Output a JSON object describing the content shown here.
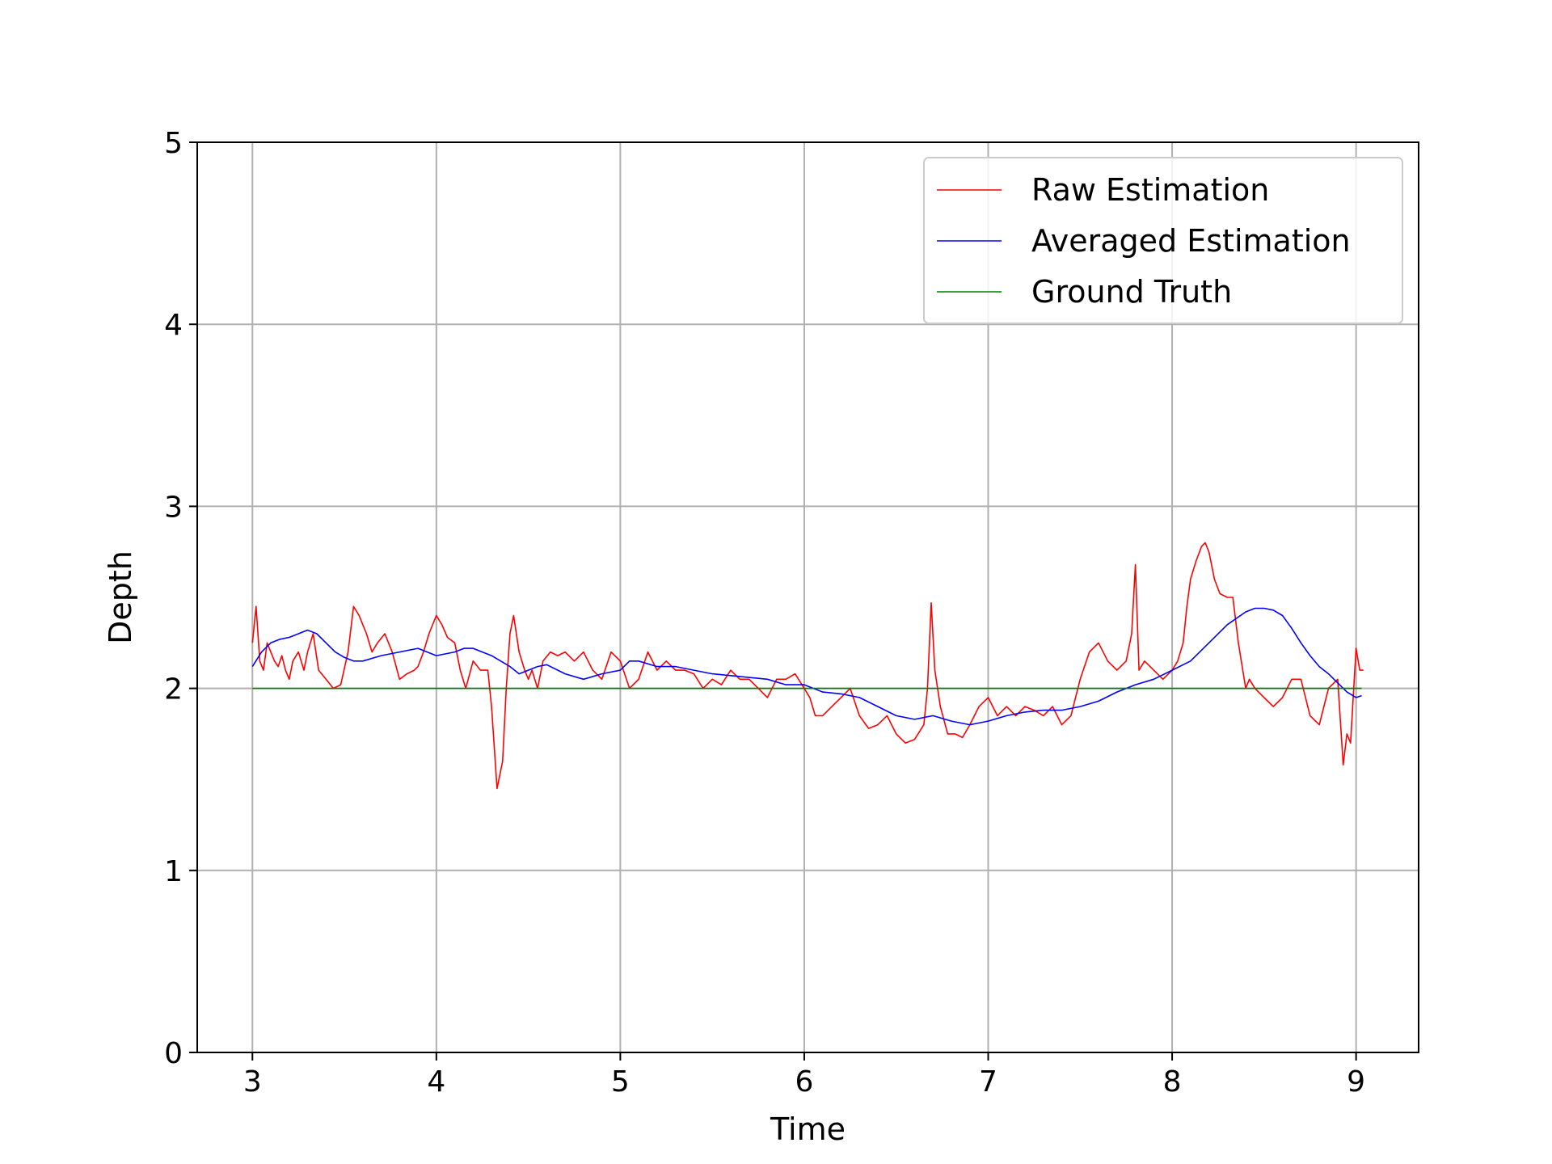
{
  "chart_data": {
    "type": "line",
    "title": "",
    "xlabel": "Time",
    "ylabel": "Depth",
    "xlim": [
      2.7,
      9.34
    ],
    "ylim": [
      0,
      5
    ],
    "xticks": [
      "3",
      "4",
      "5",
      "6",
      "7",
      "8",
      "9"
    ],
    "yticks": [
      "0",
      "1",
      "2",
      "3",
      "4",
      "5"
    ],
    "grid": true,
    "legend_position": "top-right",
    "series": [
      {
        "name": "Raw Estimation",
        "color": "#ff0000",
        "x": [
          3.0,
          3.02,
          3.04,
          3.06,
          3.08,
          3.1,
          3.12,
          3.14,
          3.16,
          3.18,
          3.2,
          3.22,
          3.25,
          3.28,
          3.3,
          3.33,
          3.36,
          3.4,
          3.44,
          3.48,
          3.52,
          3.55,
          3.58,
          3.6,
          3.62,
          3.65,
          3.68,
          3.72,
          3.76,
          3.8,
          3.84,
          3.88,
          3.9,
          3.93,
          3.96,
          4.0,
          4.03,
          4.06,
          4.1,
          4.13,
          4.16,
          4.2,
          4.24,
          4.28,
          4.3,
          4.33,
          4.36,
          4.38,
          4.4,
          4.42,
          4.45,
          4.48,
          4.5,
          4.52,
          4.55,
          4.58,
          4.62,
          4.66,
          4.7,
          4.75,
          4.8,
          4.85,
          4.9,
          4.95,
          5.0,
          5.05,
          5.1,
          5.15,
          5.2,
          5.25,
          5.3,
          5.35,
          5.4,
          5.45,
          5.5,
          5.55,
          5.6,
          5.65,
          5.7,
          5.75,
          5.8,
          5.85,
          5.9,
          5.95,
          6.0,
          6.03,
          6.06,
          6.1,
          6.15,
          6.2,
          6.25,
          6.3,
          6.35,
          6.4,
          6.45,
          6.5,
          6.55,
          6.6,
          6.65,
          6.67,
          6.69,
          6.71,
          6.74,
          6.78,
          6.82,
          6.86,
          6.9,
          6.95,
          7.0,
          7.05,
          7.1,
          7.15,
          7.2,
          7.25,
          7.3,
          7.35,
          7.4,
          7.45,
          7.5,
          7.55,
          7.6,
          7.65,
          7.7,
          7.75,
          7.78,
          7.8,
          7.82,
          7.85,
          7.9,
          7.95,
          8.0,
          8.03,
          8.06,
          8.08,
          8.1,
          8.13,
          8.16,
          8.18,
          8.2,
          8.23,
          8.26,
          8.3,
          8.33,
          8.36,
          8.4,
          8.42,
          8.45,
          8.5,
          8.55,
          8.6,
          8.65,
          8.7,
          8.75,
          8.8,
          8.85,
          8.9,
          8.93,
          8.95,
          8.97,
          9.0,
          9.02,
          9.04
        ],
        "y": [
          2.25,
          2.45,
          2.15,
          2.1,
          2.25,
          2.2,
          2.15,
          2.12,
          2.18,
          2.1,
          2.05,
          2.15,
          2.2,
          2.1,
          2.2,
          2.3,
          2.1,
          2.05,
          2.0,
          2.02,
          2.2,
          2.45,
          2.4,
          2.35,
          2.3,
          2.2,
          2.25,
          2.3,
          2.2,
          2.05,
          2.08,
          2.1,
          2.12,
          2.2,
          2.3,
          2.4,
          2.35,
          2.28,
          2.25,
          2.1,
          2.0,
          2.15,
          2.1,
          2.1,
          1.9,
          1.45,
          1.6,
          2.0,
          2.3,
          2.4,
          2.2,
          2.1,
          2.05,
          2.1,
          2.0,
          2.15,
          2.2,
          2.18,
          2.2,
          2.15,
          2.2,
          2.1,
          2.05,
          2.2,
          2.15,
          2.0,
          2.05,
          2.2,
          2.1,
          2.15,
          2.1,
          2.1,
          2.08,
          2.0,
          2.05,
          2.02,
          2.1,
          2.05,
          2.05,
          2.0,
          1.95,
          2.05,
          2.05,
          2.08,
          2.0,
          1.95,
          1.85,
          1.85,
          1.9,
          1.95,
          2.0,
          1.85,
          1.78,
          1.8,
          1.85,
          1.75,
          1.7,
          1.72,
          1.8,
          2.0,
          2.47,
          2.1,
          1.9,
          1.75,
          1.75,
          1.73,
          1.8,
          1.9,
          1.95,
          1.85,
          1.9,
          1.85,
          1.9,
          1.88,
          1.85,
          1.9,
          1.8,
          1.85,
          2.05,
          2.2,
          2.25,
          2.15,
          2.1,
          2.15,
          2.3,
          2.68,
          2.1,
          2.15,
          2.1,
          2.05,
          2.1,
          2.15,
          2.25,
          2.45,
          2.6,
          2.7,
          2.78,
          2.8,
          2.75,
          2.6,
          2.52,
          2.5,
          2.5,
          2.25,
          2.0,
          2.05,
          2.0,
          1.95,
          1.9,
          1.95,
          2.05,
          2.05,
          1.85,
          1.8,
          2.0,
          2.05,
          1.58,
          1.75,
          1.7,
          2.22,
          2.1,
          2.1
        ]
      },
      {
        "name": "Averaged Estimation",
        "color": "#0000ff",
        "x": [
          3.0,
          3.05,
          3.1,
          3.15,
          3.2,
          3.25,
          3.3,
          3.35,
          3.4,
          3.45,
          3.5,
          3.55,
          3.6,
          3.7,
          3.8,
          3.9,
          4.0,
          4.1,
          4.15,
          4.2,
          4.25,
          4.3,
          4.35,
          4.4,
          4.45,
          4.5,
          4.55,
          4.6,
          4.7,
          4.8,
          4.9,
          5.0,
          5.05,
          5.1,
          5.2,
          5.3,
          5.4,
          5.5,
          5.6,
          5.7,
          5.8,
          5.9,
          6.0,
          6.1,
          6.2,
          6.3,
          6.4,
          6.5,
          6.6,
          6.7,
          6.8,
          6.9,
          7.0,
          7.1,
          7.2,
          7.3,
          7.4,
          7.5,
          7.6,
          7.7,
          7.8,
          7.9,
          8.0,
          8.1,
          8.2,
          8.3,
          8.4,
          8.45,
          8.5,
          8.55,
          8.6,
          8.65,
          8.7,
          8.75,
          8.8,
          8.85,
          8.9,
          8.95,
          9.0,
          9.03
        ],
        "y": [
          2.12,
          2.2,
          2.25,
          2.27,
          2.28,
          2.3,
          2.32,
          2.3,
          2.25,
          2.2,
          2.17,
          2.15,
          2.15,
          2.18,
          2.2,
          2.22,
          2.18,
          2.2,
          2.22,
          2.22,
          2.2,
          2.18,
          2.15,
          2.12,
          2.08,
          2.1,
          2.12,
          2.13,
          2.08,
          2.05,
          2.08,
          2.1,
          2.15,
          2.15,
          2.12,
          2.12,
          2.1,
          2.08,
          2.07,
          2.06,
          2.05,
          2.02,
          2.02,
          1.98,
          1.97,
          1.95,
          1.9,
          1.85,
          1.83,
          1.85,
          1.82,
          1.8,
          1.82,
          1.85,
          1.87,
          1.88,
          1.88,
          1.9,
          1.93,
          1.98,
          2.02,
          2.05,
          2.1,
          2.15,
          2.25,
          2.35,
          2.42,
          2.44,
          2.44,
          2.43,
          2.4,
          2.33,
          2.25,
          2.18,
          2.12,
          2.08,
          2.03,
          1.98,
          1.95,
          1.96
        ]
      },
      {
        "name": "Ground Truth",
        "color": "#008000",
        "x": [
          3.0,
          9.03
        ],
        "y": [
          2.0,
          2.0
        ]
      }
    ]
  }
}
